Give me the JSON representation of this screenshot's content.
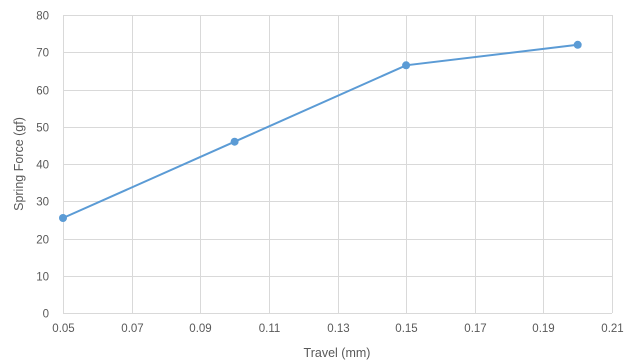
{
  "chart_data": {
    "type": "scatter",
    "xlabel": "Travel (mm)",
    "ylabel": "Spring Force (gf)",
    "xlim": [
      0.05,
      0.21
    ],
    "ylim": [
      0,
      80
    ],
    "x_ticks": [
      "0.05",
      "0.07",
      "0.09",
      "0.11",
      "0.13",
      "0.15",
      "0.17",
      "0.19",
      "0.21"
    ],
    "y_ticks": [
      "0",
      "10",
      "20",
      "30",
      "40",
      "50",
      "60",
      "70",
      "80"
    ],
    "grid": true,
    "series": [
      {
        "color": "#5b9bd5",
        "marker": "circle",
        "line": "straight",
        "points": [
          {
            "x": 0.05,
            "y": 25.5
          },
          {
            "x": 0.1,
            "y": 46
          },
          {
            "x": 0.15,
            "y": 66.5
          },
          {
            "x": 0.2,
            "y": 72
          }
        ]
      }
    ]
  }
}
